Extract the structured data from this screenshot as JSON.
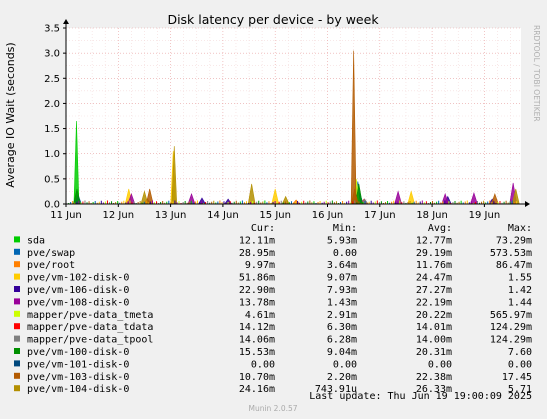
{
  "chart_data": {
    "type": "line",
    "title": "Disk latency per device - by week",
    "ylabel": "Average IO Wait (seconds)",
    "side_label": "RRDTOOL / TOBI OETIKER",
    "ylim": [
      0,
      3.5
    ],
    "yticks": [
      "0.0",
      "0.5",
      "1.0",
      "1.5",
      "2.0",
      "2.5",
      "3.0",
      "3.5"
    ],
    "xlim": [
      0,
      8.7
    ],
    "xtick_labels": [
      "11 Jun",
      "12 Jun",
      "13 Jun",
      "14 Jun",
      "15 Jun",
      "16 Jun",
      "17 Jun",
      "18 Jun",
      "19 Jun"
    ],
    "columns": [
      "Cur:",
      "Min:",
      "Avg:",
      "Max:"
    ],
    "series": [
      {
        "name": "sda",
        "color": "#00cc00",
        "cur": "12.11m",
        "min": "5.93m",
        "avg": "12.77m",
        "max": "73.29m",
        "peaks": [
          [
            0.2,
            1.65
          ],
          [
            0.22,
            0.08
          ]
        ]
      },
      {
        "name": "pve/swap",
        "color": "#0066b3",
        "cur": "28.95m",
        "min": "0.00",
        "avg": "29.19m",
        "max": "573.53m",
        "peaks": [
          [
            0.23,
            0.18
          ],
          [
            5.58,
            0.45
          ],
          [
            5.62,
            0.2
          ]
        ]
      },
      {
        "name": "pve/root",
        "color": "#ff8000",
        "cur": "9.97m",
        "min": "3.64m",
        "avg": "11.76m",
        "max": "86.47m",
        "peaks": [
          [
            1.2,
            0.08
          ],
          [
            4.4,
            0.08
          ]
        ]
      },
      {
        "name": "pve/vm-102-disk-0",
        "color": "#ffcc00",
        "cur": "51.86m",
        "min": "9.07m",
        "avg": "24.47m",
        "max": "1.55",
        "peaks": [
          [
            1.2,
            0.3
          ],
          [
            2.05,
            1.05
          ],
          [
            4.0,
            0.3
          ],
          [
            6.6,
            0.25
          ]
        ]
      },
      {
        "name": "pve/vm-106-disk-0",
        "color": "#330099",
        "cur": "22.90m",
        "min": "7.93m",
        "avg": "27.27m",
        "max": "1.42",
        "peaks": [
          [
            2.6,
            0.12
          ],
          [
            3.1,
            0.1
          ],
          [
            7.3,
            0.15
          ],
          [
            8.15,
            0.1
          ]
        ]
      },
      {
        "name": "pve/vm-108-disk-0",
        "color": "#990099",
        "cur": "13.78m",
        "min": "1.43m",
        "avg": "22.19m",
        "max": "1.44",
        "peaks": [
          [
            1.25,
            0.2
          ],
          [
            2.4,
            0.2
          ],
          [
            6.35,
            0.25
          ],
          [
            7.25,
            0.2
          ],
          [
            7.8,
            0.22
          ],
          [
            8.55,
            0.42
          ]
        ]
      },
      {
        "name": "mapper/pve-data_tmeta",
        "color": "#ccff00",
        "cur": "4.61m",
        "min": "2.91m",
        "avg": "20.22m",
        "max": "565.97m",
        "peaks": [
          [
            5.55,
            0.5
          ]
        ]
      },
      {
        "name": "mapper/pve-data_tdata",
        "color": "#ff0000",
        "cur": "14.12m",
        "min": "6.30m",
        "avg": "14.01m",
        "max": "124.29m",
        "peaks": [
          [
            1.55,
            0.1
          ],
          [
            5.7,
            0.1
          ]
        ]
      },
      {
        "name": "mapper/pve-data_tpool",
        "color": "#808080",
        "cur": "14.06m",
        "min": "6.28m",
        "avg": "14.00m",
        "max": "124.29m",
        "peaks": [
          [
            1.56,
            0.1
          ],
          [
            5.71,
            0.1
          ]
        ]
      },
      {
        "name": "pve/vm-100-disk-0",
        "color": "#008f00",
        "cur": "15.53m",
        "min": "9.04m",
        "avg": "20.31m",
        "max": "7.60",
        "peaks": [
          [
            0.21,
            0.3
          ],
          [
            5.6,
            0.4
          ]
        ]
      },
      {
        "name": "pve/vm-101-disk-0",
        "color": "#00487d",
        "cur": "0.00",
        "min": "0.00",
        "avg": "0.00",
        "max": "0.00",
        "peaks": []
      },
      {
        "name": "pve/vm-103-disk-0",
        "color": "#b35a00",
        "cur": "10.70m",
        "min": "2.20m",
        "avg": "22.38m",
        "max": "17.45",
        "peaks": [
          [
            1.6,
            0.3
          ],
          [
            5.5,
            3.05
          ],
          [
            5.52,
            0.3
          ],
          [
            8.2,
            0.2
          ]
        ]
      },
      {
        "name": "pve/vm-104-disk-0",
        "color": "#b38f00",
        "cur": "24.16m",
        "min": "743.91u",
        "avg": "26.33m",
        "max": "5.71",
        "peaks": [
          [
            2.07,
            1.15
          ],
          [
            3.55,
            0.4
          ],
          [
            1.5,
            0.25
          ],
          [
            4.2,
            0.15
          ],
          [
            8.6,
            0.3
          ]
        ]
      }
    ]
  },
  "footer": {
    "last_update": "Last update: Thu Jun 19 19:00:09 2025",
    "version": "Munin 2.0.57"
  }
}
